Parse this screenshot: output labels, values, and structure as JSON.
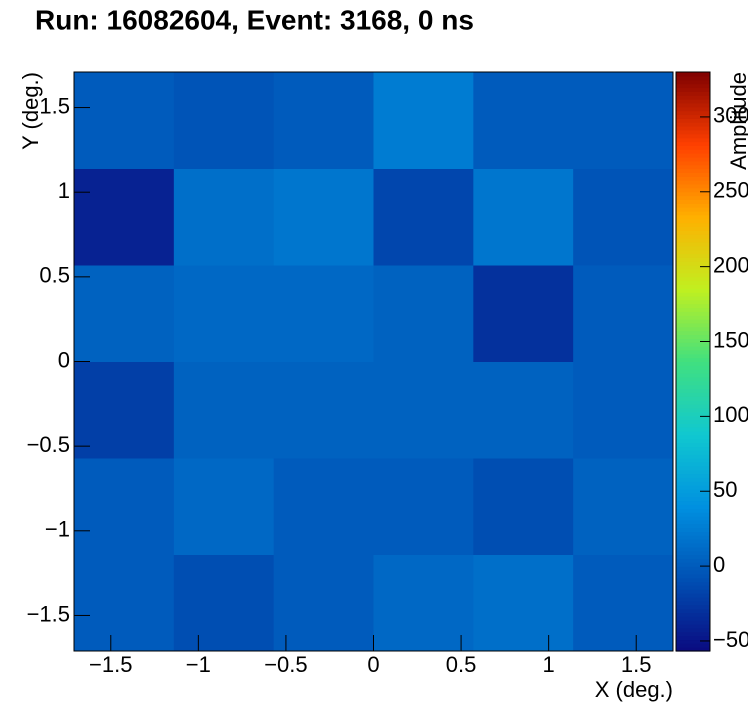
{
  "chart_data": {
    "type": "heatmap",
    "title": "Run: 16082604, Event: 3168, 0 ns",
    "x_label": "X (deg.)",
    "y_label": "Y (deg.)",
    "colorbar_label": "Amplitude",
    "xbins": [
      -1.71,
      -1.14,
      -0.57,
      0,
      0.57,
      1.14,
      1.71
    ],
    "ybins": [
      -1.71,
      -1.14,
      -0.57,
      0,
      0.57,
      1.14,
      1.71
    ],
    "z": [
      [
        0,
        -10,
        0,
        10,
        15,
        0
      ],
      [
        0,
        10,
        0,
        0,
        -10,
        5
      ],
      [
        -20,
        5,
        5,
        5,
        5,
        0
      ],
      [
        5,
        10,
        10,
        5,
        -30,
        0
      ],
      [
        -40,
        15,
        20,
        -15,
        20,
        -5
      ],
      [
        0,
        -5,
        0,
        25,
        0,
        0
      ]
    ],
    "xlim": [
      -1.71,
      1.71
    ],
    "ylim": [
      -1.71,
      1.71
    ],
    "zlim": [
      -56.7,
      330
    ],
    "xticks": [
      {
        "value": -1.5,
        "label": "−1.5"
      },
      {
        "value": -1,
        "label": "−1"
      },
      {
        "value": -0.5,
        "label": "−0.5"
      },
      0,
      0.5,
      1,
      1.5
    ],
    "yticks": [
      {
        "value": -1.5,
        "label": "−1.5"
      },
      {
        "value": -1,
        "label": "−1"
      },
      {
        "value": -0.5,
        "label": "−0.5"
      },
      0,
      0.5,
      1,
      1.5
    ],
    "zticks": [
      {
        "value": -50,
        "label": "−50"
      },
      0,
      50,
      100,
      150,
      200,
      250,
      300
    ],
    "colormap": [
      "#0a0a80",
      "#0050b4",
      "#0090e0",
      "#10c8d0",
      "#40e080",
      "#c0f020",
      "#ffb000",
      "#ff4000",
      "#800000"
    ]
  }
}
